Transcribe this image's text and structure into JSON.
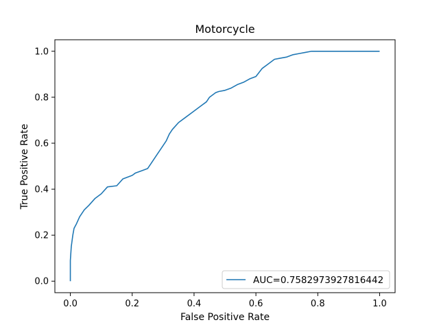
{
  "chart_data": {
    "type": "line",
    "title": "Motorcycle",
    "xlabel": "False Positive Rate",
    "ylabel": "True Positive Rate",
    "xlim": [
      -0.05,
      1.05
    ],
    "ylim": [
      -0.05,
      1.05
    ],
    "x_ticks": [
      0.0,
      0.2,
      0.4,
      0.6,
      0.8,
      1.0
    ],
    "y_ticks": [
      0.0,
      0.2,
      0.4,
      0.6,
      0.8,
      1.0
    ],
    "x_tick_labels": [
      "0.0",
      "0.2",
      "0.4",
      "0.6",
      "0.8",
      "1.0"
    ],
    "y_tick_labels": [
      "0.0",
      "0.2",
      "0.4",
      "0.6",
      "0.8",
      "1.0"
    ],
    "grid": false,
    "legend_position": "lower right",
    "series": [
      {
        "name": "AUC=0.7582973927816442",
        "color": "#1f77b4",
        "x": [
          0.0,
          0.0,
          0.003,
          0.005,
          0.008,
          0.012,
          0.02,
          0.03,
          0.045,
          0.06,
          0.08,
          0.1,
          0.12,
          0.15,
          0.16,
          0.17,
          0.2,
          0.21,
          0.23,
          0.25,
          0.26,
          0.28,
          0.3,
          0.31,
          0.32,
          0.33,
          0.35,
          0.37,
          0.4,
          0.42,
          0.44,
          0.45,
          0.47,
          0.48,
          0.5,
          0.52,
          0.54,
          0.56,
          0.58,
          0.6,
          0.62,
          0.64,
          0.66,
          0.68,
          0.7,
          0.72,
          0.74,
          0.76,
          0.78,
          0.8,
          0.85,
          0.9,
          0.95,
          1.0
        ],
        "y": [
          0.0,
          0.09,
          0.15,
          0.17,
          0.2,
          0.23,
          0.25,
          0.28,
          0.31,
          0.33,
          0.36,
          0.38,
          0.41,
          0.415,
          0.43,
          0.445,
          0.46,
          0.47,
          0.48,
          0.49,
          0.51,
          0.55,
          0.59,
          0.61,
          0.64,
          0.66,
          0.69,
          0.71,
          0.74,
          0.76,
          0.78,
          0.8,
          0.82,
          0.825,
          0.83,
          0.84,
          0.855,
          0.865,
          0.88,
          0.89,
          0.925,
          0.945,
          0.965,
          0.97,
          0.975,
          0.985,
          0.99,
          0.995,
          1.0,
          1.0,
          1.0,
          1.0,
          1.0,
          1.0
        ]
      }
    ]
  }
}
